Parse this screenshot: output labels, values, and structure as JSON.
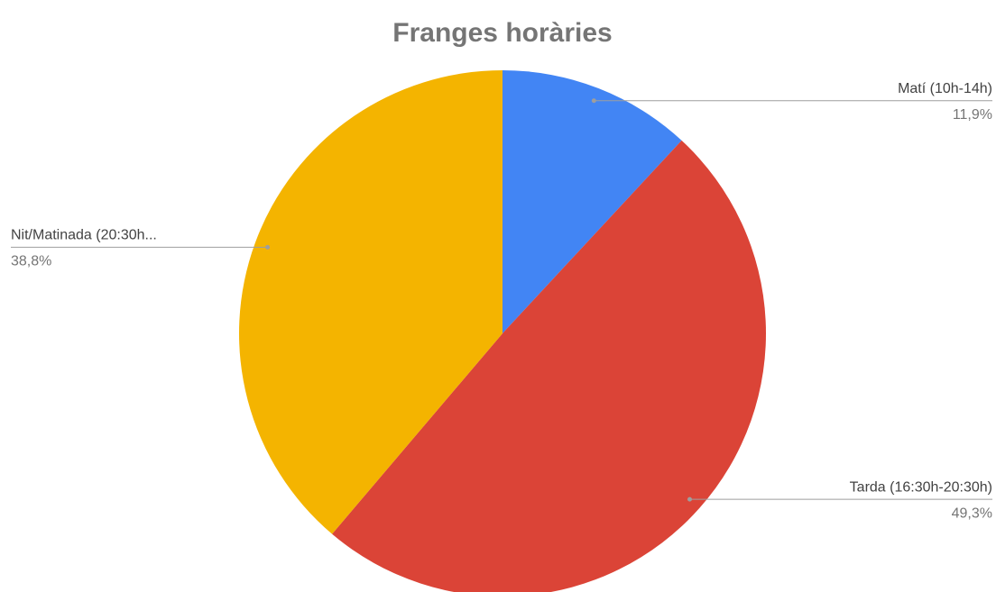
{
  "chart_data": {
    "type": "pie",
    "title": "Franges horàries",
    "categories": [
      "Matí (10h-14h)",
      "Tarda (16:30h-20:30h)",
      "Nit/Matinada (20:30h..."
    ],
    "values": [
      11.9,
      49.3,
      38.8
    ],
    "value_labels": [
      "11,9%",
      "49,3%",
      "38,8%"
    ],
    "colors": [
      "#4285f4",
      "#db4437",
      "#f4b400"
    ]
  }
}
